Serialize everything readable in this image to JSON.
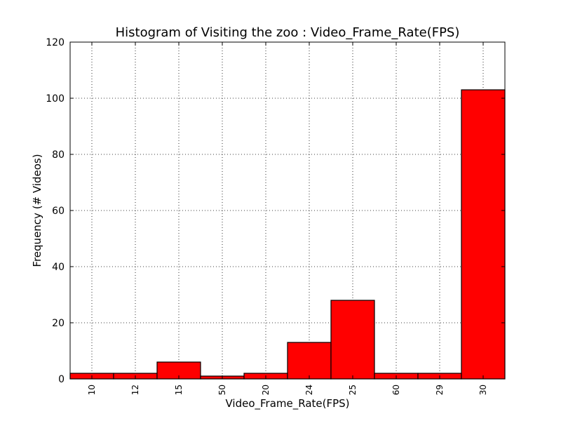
{
  "chart_data": {
    "type": "bar",
    "title": "Histogram of Visiting the zoo : Video_Frame_Rate(FPS)",
    "xlabel": "Video_Frame_Rate(FPS)",
    "ylabel": "Frequency (# Videos)",
    "categories": [
      "10",
      "12",
      "15",
      "50",
      "20",
      "24",
      "25",
      "60",
      "29",
      "30"
    ],
    "values": [
      2,
      2,
      6,
      1,
      2,
      13,
      28,
      2,
      2,
      103
    ],
    "ylim": [
      0,
      120
    ],
    "yticks": [
      "0",
      "20",
      "40",
      "60",
      "80",
      "100",
      "120"
    ],
    "grid": true,
    "bar_color": "#ff0000",
    "edge_color": "#000000"
  }
}
